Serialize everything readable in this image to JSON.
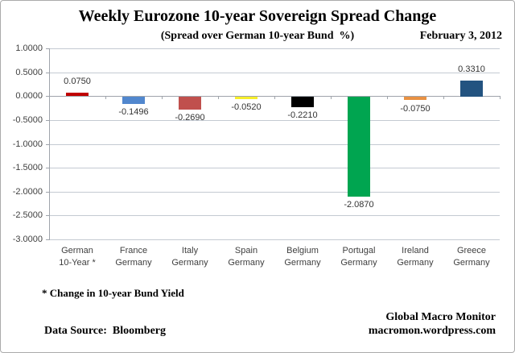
{
  "chart_data": {
    "type": "bar",
    "title": "Weekly Eurozone 10-year Sovereign Spread Change",
    "subtitle": "(Spread over German 10-year Bund  %)",
    "date": "February 3, 2012",
    "categories": [
      [
        "German",
        "10-Year *"
      ],
      [
        "France",
        "Germany"
      ],
      [
        "Italy",
        "Germany"
      ],
      [
        "Spain",
        "Germany"
      ],
      [
        "Belgium",
        "Germany"
      ],
      [
        "Portugal",
        "Germany"
      ],
      [
        "Ireland",
        "Germany"
      ],
      [
        "Greece",
        "Germany"
      ]
    ],
    "values": [
      0.075,
      -0.1496,
      -0.269,
      -0.052,
      -0.221,
      -2.087,
      -0.075,
      0.331
    ],
    "value_labels": [
      "0.0750",
      "-0.1496",
      "-0.2690",
      "-0.0520",
      "-0.2210",
      "-2.0870",
      "-0.0750",
      "0.3310"
    ],
    "bar_colors": [
      "#C00000",
      "#5187CE",
      "#C0504D",
      "#F7EE2A",
      "#000000",
      "#00A550",
      "#E89143",
      "#235380"
    ],
    "y_ticks": [
      "1.0000",
      "0.5000",
      "0.0000",
      "-0.5000",
      "-1.0000",
      "-1.5000",
      "-2.0000",
      "-2.5000",
      "-3.0000"
    ],
    "ylim": [
      -3.0,
      1.0
    ],
    "grid": true,
    "legend": "none",
    "xlabel": "",
    "ylabel": "",
    "colors": {
      "gridline": "#C4CAD2",
      "axis": "#9FA4AB",
      "axis_text": "#3F3F3F"
    }
  },
  "footer": {
    "footnote": "* Change in 10-year Bund Yield",
    "data_source": "Data Source:  Bloomberg",
    "credit_line1": "Global Macro Monitor",
    "credit_line2": "macromon.wordpress.com"
  }
}
